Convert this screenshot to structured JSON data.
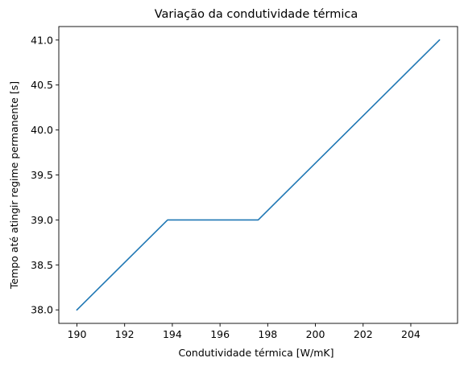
{
  "chart_data": {
    "type": "line",
    "title": "Variação da condutividade térmica",
    "xlabel": "Condutividade térmica [W/mK]",
    "ylabel": "Tempo até atingir regime permanente [s]",
    "xlim": [
      189.24,
      205.96
    ],
    "ylim": [
      37.85,
      41.15
    ],
    "xticks": [
      190,
      192,
      194,
      196,
      198,
      200,
      202,
      204
    ],
    "yticks": [
      38.0,
      38.5,
      39.0,
      39.5,
      40.0,
      40.5,
      41.0
    ],
    "xtick_labels": [
      "190",
      "192",
      "194",
      "196",
      "198",
      "200",
      "202",
      "204"
    ],
    "ytick_labels": [
      "38.0",
      "38.5",
      "39.0",
      "39.5",
      "40.0",
      "40.5",
      "41.0"
    ],
    "grid": false,
    "series": [
      {
        "color": "#1f77b4",
        "x": [
          190.0,
          193.8,
          197.6,
          205.2
        ],
        "y": [
          38.0,
          39.0,
          39.0,
          41.0
        ]
      }
    ]
  }
}
